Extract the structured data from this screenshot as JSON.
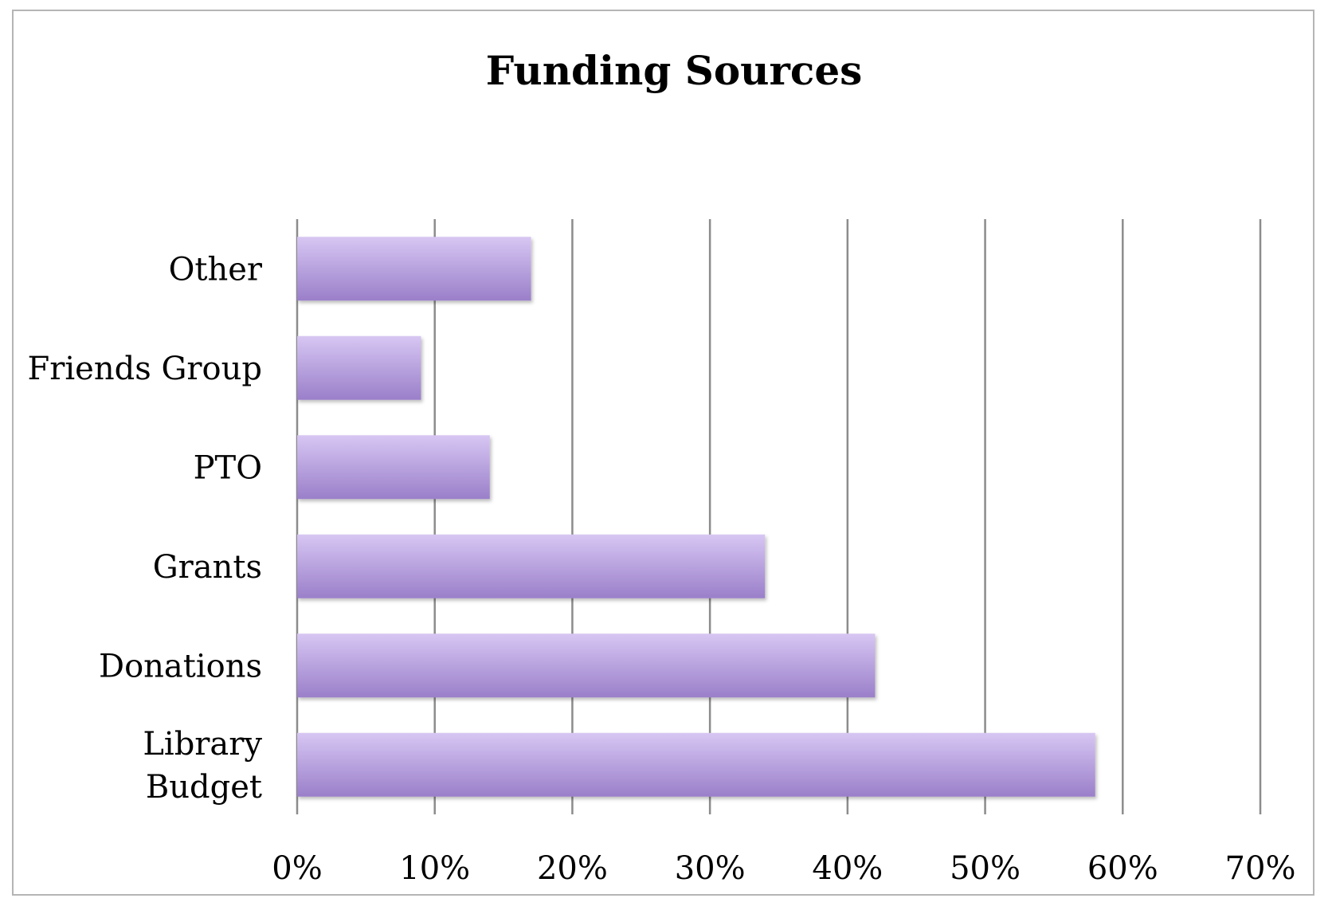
{
  "chart_data": {
    "type": "bar",
    "orientation": "horizontal",
    "title": "Funding Sources",
    "categories": [
      [
        "Library",
        "Budget"
      ],
      [
        "Donations"
      ],
      [
        "Grants"
      ],
      [
        "PTO"
      ],
      [
        "Friends Group"
      ],
      [
        "Other"
      ]
    ],
    "values": [
      58,
      42,
      34,
      14,
      9,
      17
    ],
    "xlim": [
      0,
      70
    ],
    "x_ticks": [
      "0%",
      "10%",
      "20%",
      "30%",
      "40%",
      "50%",
      "60%",
      "70%"
    ],
    "grid": true,
    "legend": "none",
    "colors": {
      "bar_top": "#d7c6f3",
      "bar_bottom": "#9a7fc9"
    }
  }
}
